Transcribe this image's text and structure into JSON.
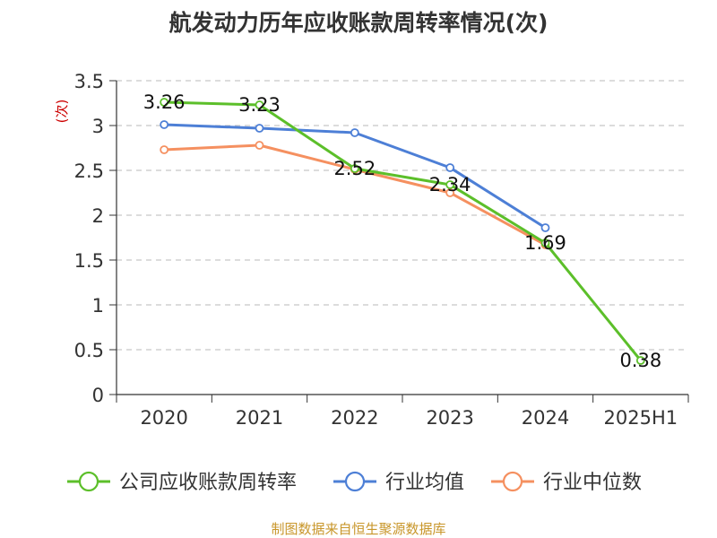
{
  "chart_data": {
    "type": "line",
    "title": "航发动力历年应收账款周转率情况(次)",
    "ylabel": "(次)",
    "xlabel": "",
    "categories": [
      "2020",
      "2021",
      "2022",
      "2023",
      "2024",
      "2025H1"
    ],
    "ylim": [
      0,
      3.5
    ],
    "yticks": [
      "0",
      "0.5",
      "1",
      "1.5",
      "2",
      "2.5",
      "3",
      "3.5"
    ],
    "grid": true,
    "legend_position": "bottom",
    "series": [
      {
        "name": "公司应收账款周转率",
        "color": "#5cbf2a",
        "values": [
          3.26,
          3.23,
          2.52,
          2.34,
          1.69,
          0.38
        ],
        "labels": [
          "3.26",
          "3.23",
          "2.52",
          "2.34",
          "1.69",
          "0.38"
        ]
      },
      {
        "name": "行业均值",
        "color": "#4d7fd6",
        "values": [
          3.01,
          2.97,
          2.92,
          2.53,
          1.86,
          null
        ]
      },
      {
        "name": "行业中位数",
        "color": "#f59060",
        "values": [
          2.73,
          2.78,
          2.51,
          2.25,
          1.67,
          null
        ]
      }
    ]
  },
  "footer": {
    "source": "制图数据来自恒生聚源数据库"
  }
}
